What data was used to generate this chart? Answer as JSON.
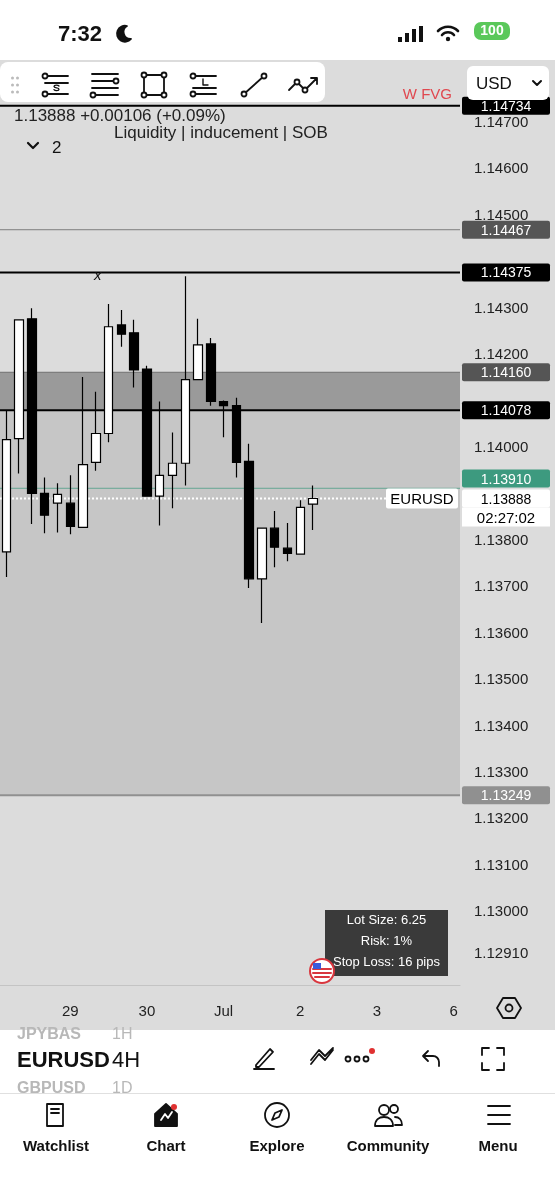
{
  "chart_data": {
    "type": "candlestick",
    "title": "Liquidity | inducement | SOB",
    "subtitle": "1.13888 +0.00106 (+0.09%)",
    "categories": [
      null,
      null,
      null,
      null,
      null,
      "29",
      null,
      null,
      null,
      null,
      null,
      "30",
      null,
      null,
      null,
      null,
      null,
      "Jul",
      null,
      null,
      null,
      null,
      null,
      "2",
      null,
      null,
      null,
      null,
      null,
      "3",
      null,
      null,
      null,
      null,
      null,
      "6"
    ],
    "ohlc": [
      [
        1.13773,
        1.14077,
        1.13719,
        1.14015
      ],
      [
        1.14017,
        1.14273,
        1.13942,
        1.14273
      ],
      [
        1.14275,
        1.14298,
        1.13833,
        1.13899
      ],
      [
        1.13899,
        1.13933,
        1.13813,
        1.13852
      ],
      [
        1.13878,
        1.13921,
        1.13815,
        1.13897
      ],
      [
        1.13878,
        1.13938,
        1.13811,
        1.13828
      ],
      [
        1.13826,
        1.1415,
        1.13826,
        1.13961
      ],
      [
        1.13966,
        1.14118,
        1.13948,
        1.14028
      ],
      [
        1.14028,
        1.14307,
        1.14009,
        1.14258
      ],
      [
        1.14262,
        1.14294,
        1.14215,
        1.14242
      ],
      [
        1.14245,
        1.14273,
        1.14127,
        1.14165
      ],
      [
        1.14167,
        1.14174,
        1.13893,
        1.13893
      ],
      [
        1.13893,
        1.14097,
        1.1383,
        1.13938
      ],
      [
        1.13938,
        1.1403,
        1.13867,
        1.13964
      ],
      [
        1.13964,
        1.14367,
        1.13916,
        1.14144
      ],
      [
        1.14144,
        1.14275,
        1.14144,
        1.14219
      ],
      [
        1.14221,
        1.14234,
        1.14088,
        1.14097
      ],
      [
        1.14097,
        1.14099,
        1.1402,
        1.14088
      ],
      [
        1.14088,
        1.14105,
        1.13933,
        1.13966
      ],
      [
        1.13968,
        1.14006,
        1.13695,
        1.13715
      ],
      [
        1.13715,
        1.13824,
        1.1362,
        1.13824
      ],
      [
        1.13824,
        1.13861,
        1.1374,
        1.13783
      ],
      [
        1.13781,
        1.13835,
        1.13753,
        1.1377
      ],
      [
        1.13768,
        1.13884,
        1.13768,
        1.13869
      ],
      [
        1.13876,
        1.13916,
        1.1382,
        1.13888
      ],
      null,
      null,
      null,
      null,
      null,
      null,
      null,
      null,
      null,
      null,
      null
    ],
    "ylim": [
      1.1284,
      1.1474
    ],
    "yticks": [
      {
        "value": 1.1291,
        "label": "1.12910"
      },
      {
        "value": 1.13,
        "label": "1.13000"
      },
      {
        "value": 1.131,
        "label": "1.13100"
      },
      {
        "value": 1.132,
        "label": "1.13200"
      },
      {
        "value": 1.133,
        "label": "1.13300"
      },
      {
        "value": 1.134,
        "label": "1.13400"
      },
      {
        "value": 1.135,
        "label": "1.13500"
      },
      {
        "value": 1.136,
        "label": "1.13600"
      },
      {
        "value": 1.137,
        "label": "1.13700"
      },
      {
        "value": 1.138,
        "label": "1.13800"
      },
      {
        "value": 1.14,
        "label": "1.14000"
      },
      {
        "value": 1.142,
        "label": "1.14200"
      },
      {
        "value": 1.143,
        "label": "1.14300"
      },
      {
        "value": 1.145,
        "label": "1.14500"
      },
      {
        "value": 1.146,
        "label": "1.14600"
      },
      {
        "value": 1.147,
        "label": "1.14700"
      }
    ],
    "ref_lines": [
      {
        "axis": "y",
        "value": 1.14734,
        "label": "1.14734",
        "color": "#000000",
        "line_style": "solid"
      },
      {
        "axis": "y",
        "value": 1.14467,
        "label": "1.14467",
        "color": "#555555"
      },
      {
        "axis": "y",
        "value": 1.14375,
        "label": "1.14375",
        "color": "#000000",
        "line_style": "solid"
      },
      {
        "axis": "y",
        "value": 1.1416,
        "label": "1.14160",
        "color": "#555555"
      },
      {
        "axis": "y",
        "value": 1.14078,
        "label": "1.14078",
        "color": "#000000",
        "line_style": "solid"
      },
      {
        "axis": "y",
        "value": 1.1391,
        "label": "1.13910",
        "color": "#3d9a7f"
      },
      {
        "axis": "y",
        "value": 1.13888,
        "label": "1.13888",
        "color": "#ffffff",
        "line_style": "dotted"
      },
      {
        "axis": "y",
        "value": 1.13249,
        "label": "1.13249",
        "color": "#909090",
        "line_style": "solid"
      }
    ],
    "bands": [
      {
        "axis": "y",
        "from": 1.14078,
        "to": 1.1416,
        "color": "#9a9a9a"
      },
      {
        "axis": "y",
        "from": 1.13249,
        "to": 1.14078,
        "color": "#c6c6c6"
      }
    ],
    "annotations": [
      "W FVG",
      "EURUSD",
      "02:27:02",
      "x",
      "2",
      "USD",
      "Lot Size: 6.25",
      "Risk: 1%",
      "Stop Loss: 16 pips",
      "7:32",
      "100",
      "JPYBAS",
      "1H",
      "EURUSD",
      "4H",
      "GBPUSD",
      "1D",
      "Watchlist",
      "Chart",
      "Explore",
      "Community",
      "Menu"
    ],
    "grid": false
  }
}
